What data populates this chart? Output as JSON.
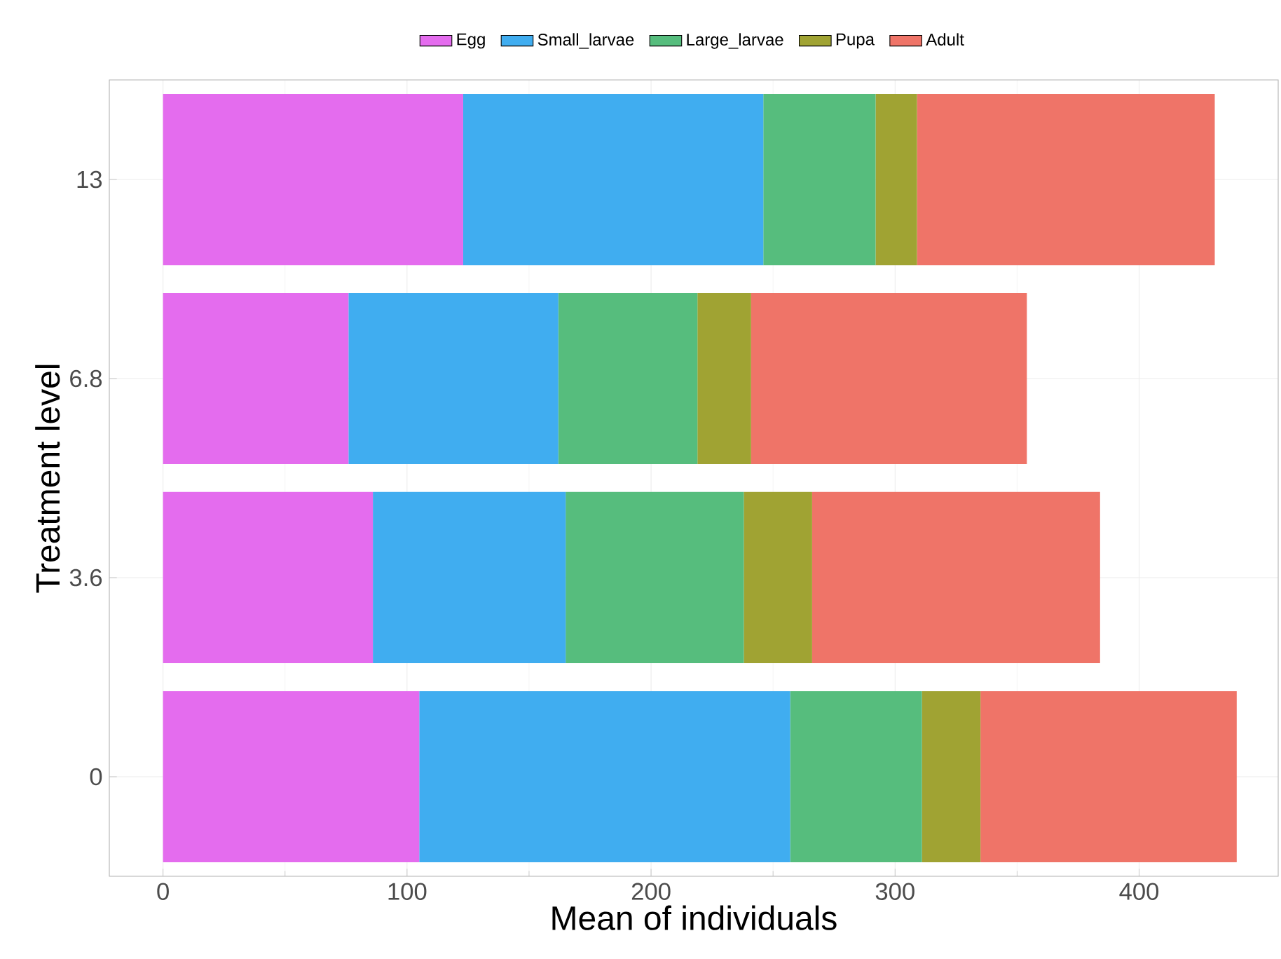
{
  "chart_data": {
    "type": "bar",
    "orientation": "horizontal",
    "stacked": true,
    "xlabel": "Mean of individuals",
    "ylabel": "Treatment level",
    "categories": [
      "13",
      "6.8",
      "3.6",
      "0"
    ],
    "series": [
      {
        "name": "Egg",
        "color": "#e46cee",
        "values": [
          123,
          76,
          86,
          105
        ]
      },
      {
        "name": "Small_larvae",
        "color": "#40adf0",
        "values": [
          123,
          86,
          79,
          152
        ]
      },
      {
        "name": "Large_larvae",
        "color": "#56bd7d",
        "values": [
          46,
          57,
          73,
          54
        ]
      },
      {
        "name": "Pupa",
        "color": "#a0a333",
        "values": [
          17,
          22,
          28,
          24
        ]
      },
      {
        "name": "Adult",
        "color": "#ef7468",
        "values": [
          122,
          113,
          118,
          105
        ]
      }
    ],
    "xlim": [
      -22,
      457
    ],
    "xticks": [
      0,
      100,
      200,
      300,
      400
    ],
    "grid": true,
    "legend": "top"
  }
}
